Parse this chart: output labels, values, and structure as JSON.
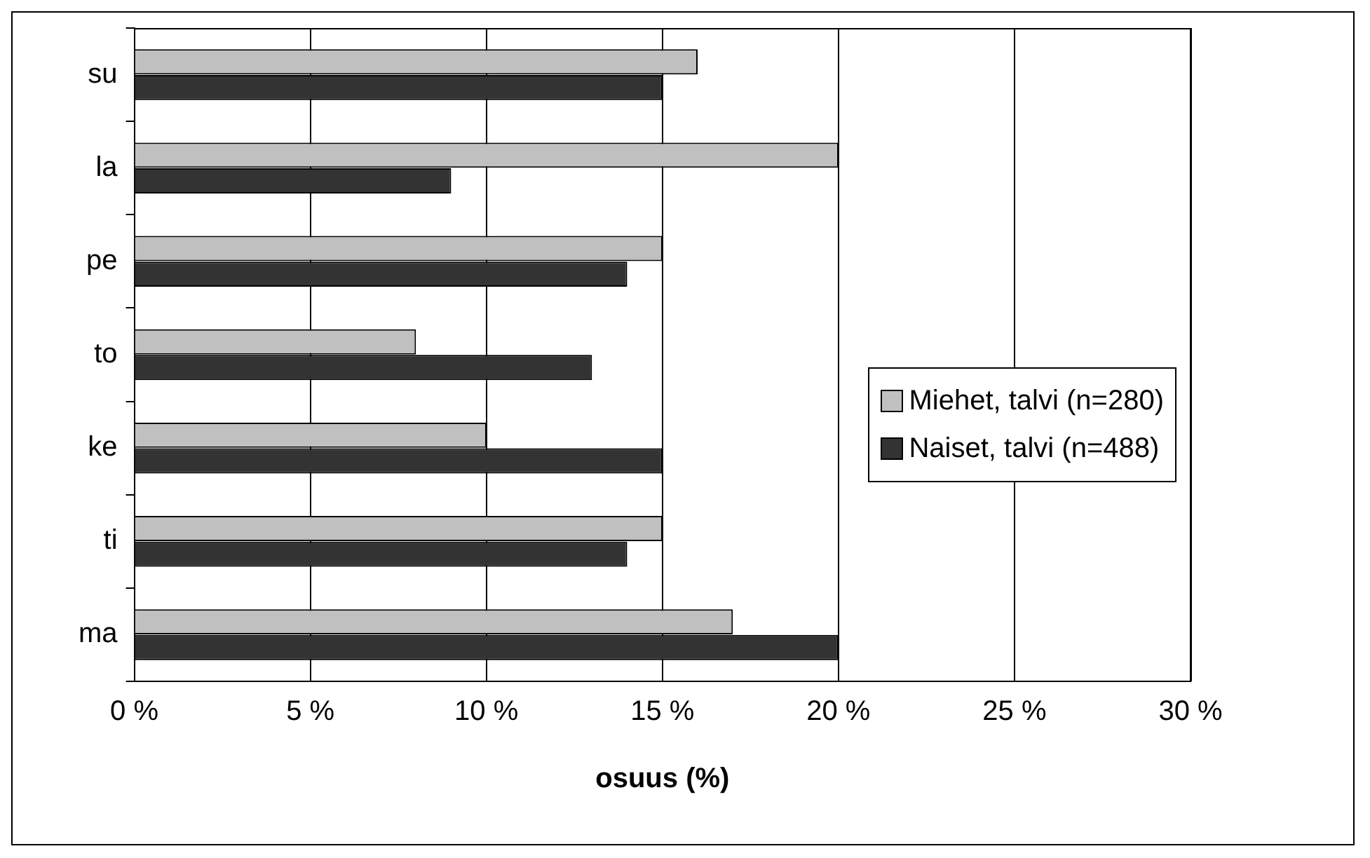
{
  "chart_data": {
    "type": "bar",
    "orientation": "horizontal",
    "xlabel": "osuus (%)",
    "categories": [
      "su",
      "la",
      "pe",
      "to",
      "ke",
      "ti",
      "ma"
    ],
    "series": [
      {
        "name": "Miehet, talvi (n=280)",
        "color": "#c0c0c0",
        "values": [
          16,
          20,
          15,
          8,
          10,
          15,
          17
        ]
      },
      {
        "name": "Naiset, talvi (n=488)",
        "color": "#333333",
        "values": [
          15,
          9,
          14,
          13,
          15,
          14,
          20
        ]
      }
    ],
    "xlim": [
      0,
      30
    ],
    "xticks": [
      {
        "value": 0,
        "label": "0 %"
      },
      {
        "value": 5,
        "label": "5 %"
      },
      {
        "value": 10,
        "label": "10 %"
      },
      {
        "value": 15,
        "label": "15 %"
      },
      {
        "value": 20,
        "label": "20 %"
      },
      {
        "value": 25,
        "label": "25 %"
      },
      {
        "value": 30,
        "label": "30 %"
      }
    ],
    "grid": "x",
    "legend": "right"
  }
}
